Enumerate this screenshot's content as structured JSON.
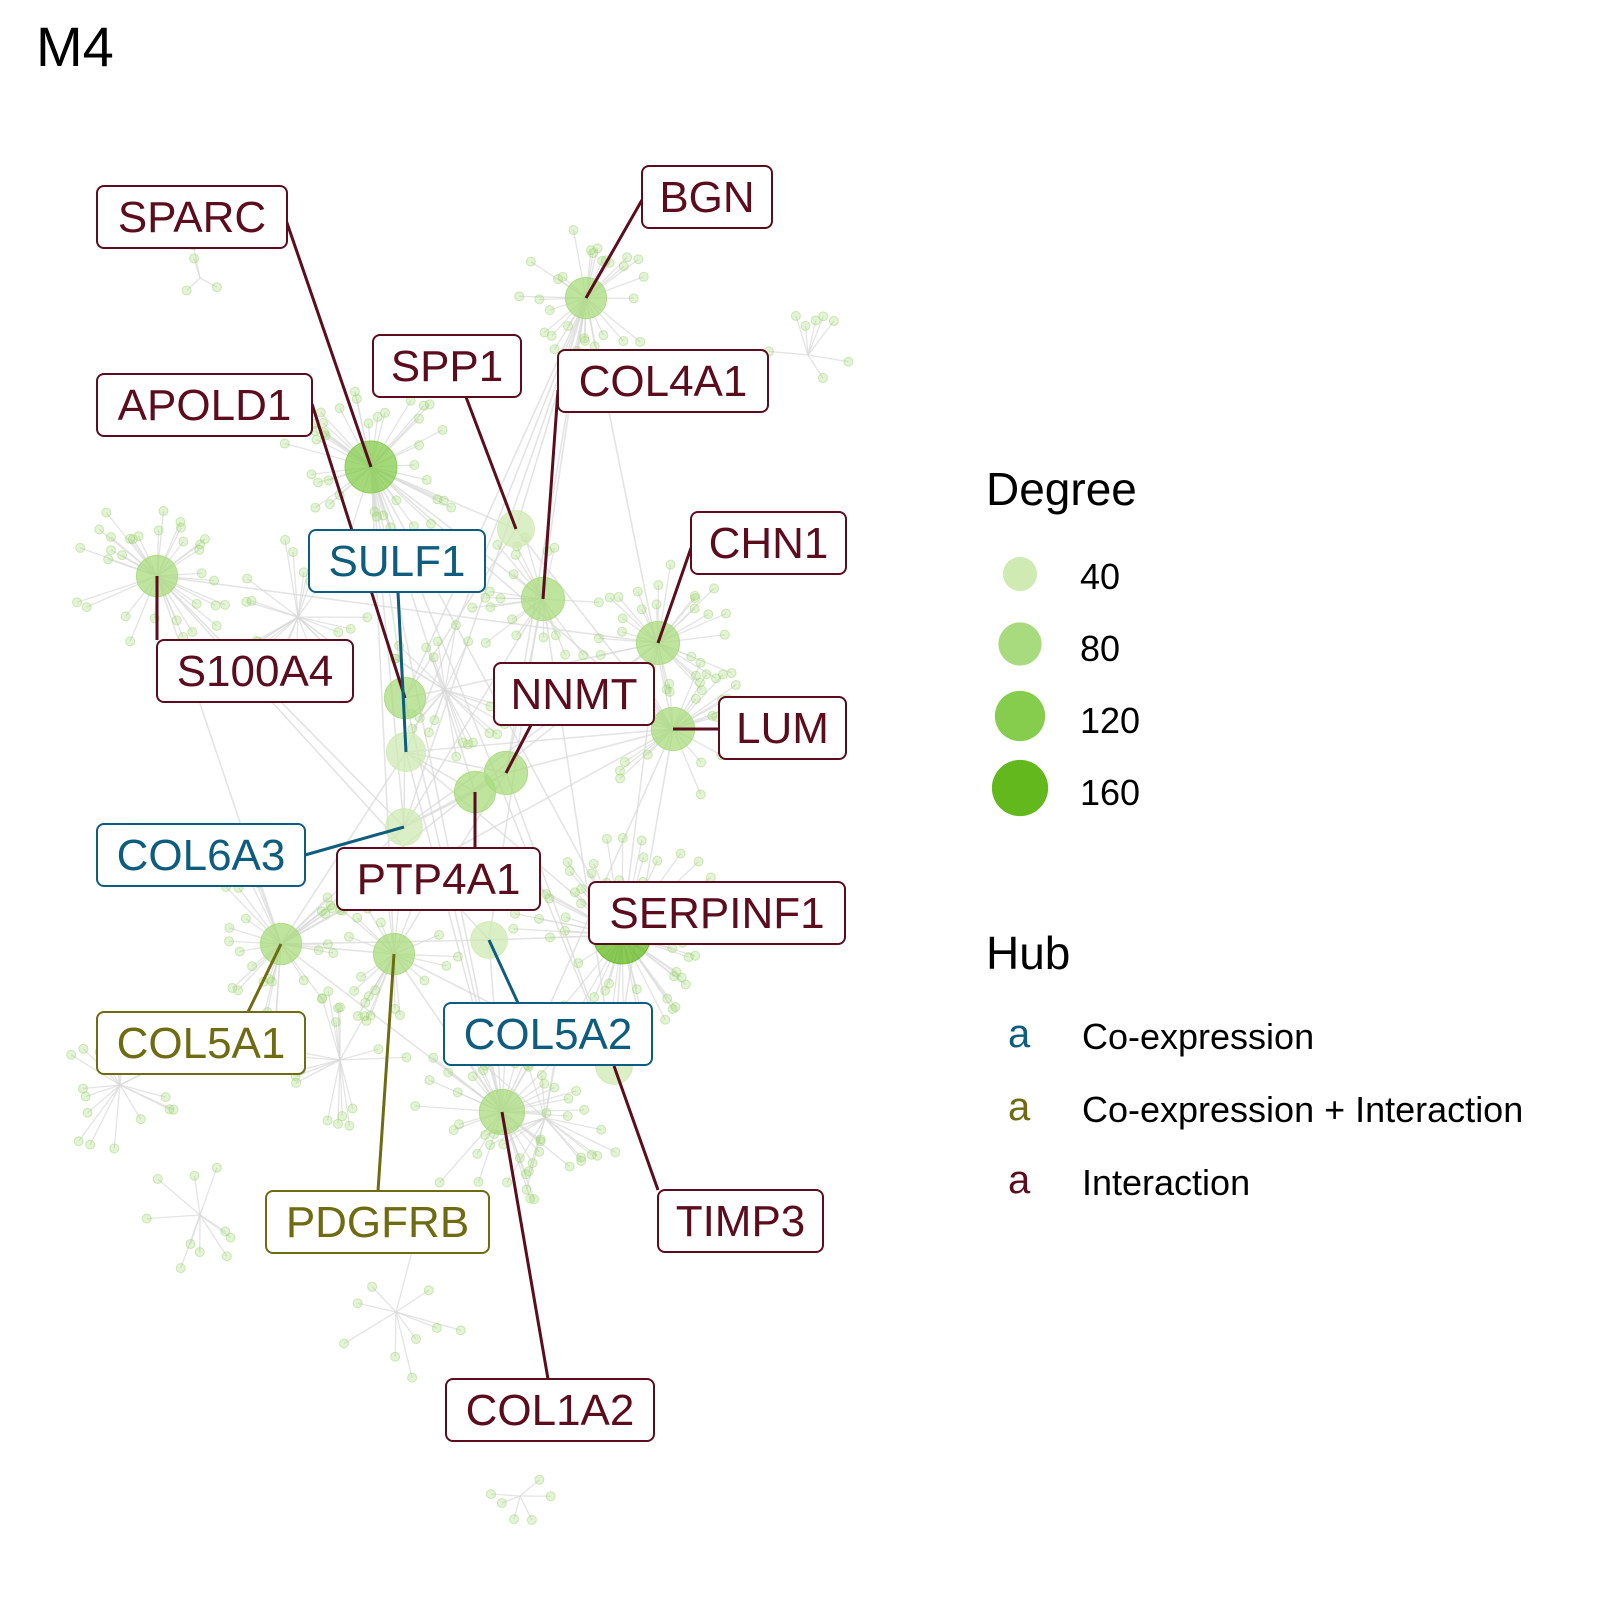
{
  "title": "M4",
  "colors": {
    "edge": "#d9d9d9",
    "node_fill": "#9bd36b",
    "degree_scale": [
      "#cfeab3",
      "#a8db7e",
      "#86cc4d",
      "#63b81e"
    ]
  },
  "legend": {
    "degree": {
      "title": "Degree",
      "items": [
        {
          "label": "40",
          "value": 40
        },
        {
          "label": "80",
          "value": 80
        },
        {
          "label": "120",
          "value": 120
        },
        {
          "label": "160",
          "value": 160
        }
      ]
    },
    "hub": {
      "title": "Hub",
      "glyph": "a",
      "items": [
        {
          "label": "Co-expression",
          "color": "#0e5d7e"
        },
        {
          "label": "Co-expression + Interaction",
          "color": "#6e6b12"
        },
        {
          "label": "Interaction",
          "color": "#5b0d1e"
        }
      ]
    }
  },
  "hub_genes": [
    {
      "gene": "SPARC",
      "hub": "Interaction",
      "degree": 130
    },
    {
      "gene": "BGN",
      "hub": "Interaction",
      "degree": 70
    },
    {
      "gene": "SPP1",
      "hub": "Interaction",
      "degree": 50
    },
    {
      "gene": "COL4A1",
      "hub": "Interaction",
      "degree": 80
    },
    {
      "gene": "APOLD1",
      "hub": "Interaction",
      "degree": 70
    },
    {
      "gene": "CHN1",
      "hub": "Interaction",
      "degree": 80
    },
    {
      "gene": "SULF1",
      "hub": "Co-expression",
      "degree": 60
    },
    {
      "gene": "S100A4",
      "hub": "Interaction",
      "degree": 70
    },
    {
      "gene": "NNMT",
      "hub": "Interaction",
      "degree": 80
    },
    {
      "gene": "LUM",
      "hub": "Interaction",
      "degree": 80
    },
    {
      "gene": "COL6A3",
      "hub": "Co-expression",
      "degree": 50
    },
    {
      "gene": "PTP4A1",
      "hub": "Interaction",
      "degree": 70
    },
    {
      "gene": "SERPINF1",
      "hub": "Interaction",
      "degree": 170
    },
    {
      "gene": "COL5A1",
      "hub": "Co-expression + Interaction",
      "degree": 70
    },
    {
      "gene": "COL5A2",
      "hub": "Co-expression",
      "degree": 50
    },
    {
      "gene": "PDGFRB",
      "hub": "Co-expression + Interaction",
      "degree": 70
    },
    {
      "gene": "TIMP3",
      "hub": "Interaction",
      "degree": 50
    },
    {
      "gene": "COL1A2",
      "hub": "Interaction",
      "degree": 90
    }
  ]
}
